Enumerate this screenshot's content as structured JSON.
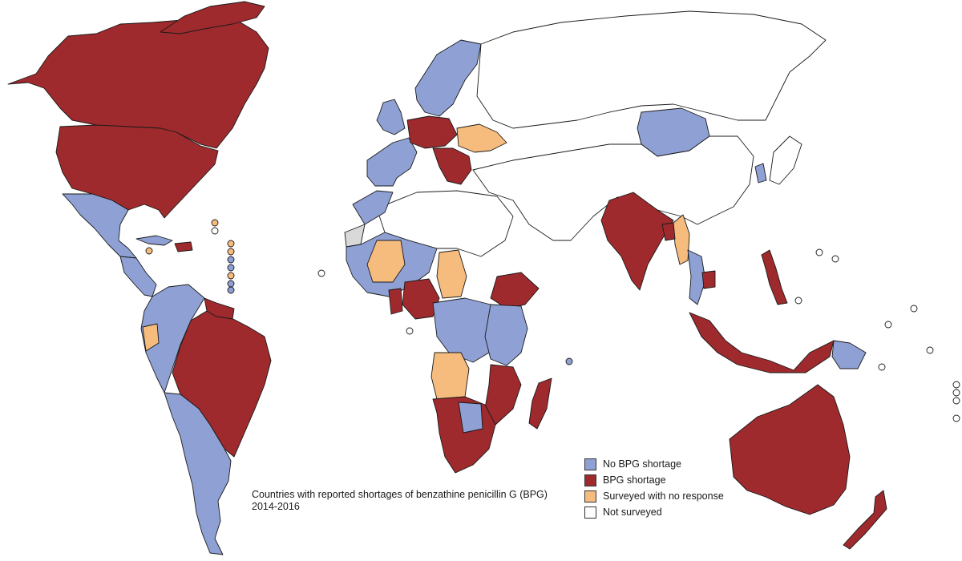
{
  "caption": {
    "line1": "Countries with reported shortages of benzathine penicillin G (BPG)",
    "line2": "2014-2016"
  },
  "legend": [
    {
      "key": "no_shortage",
      "label": "No BPG shortage",
      "color": "#8fa1d4"
    },
    {
      "key": "shortage",
      "label": "BPG shortage",
      "color": "#9e2a2d"
    },
    {
      "key": "no_response",
      "label": "Surveyed with no response",
      "color": "#f6bc7e"
    },
    {
      "key": "not_surveyed",
      "label": "Not surveyed",
      "color": "#ffffff"
    }
  ],
  "colors": {
    "outline": "#1a1a1a",
    "no_data_gray": "#d9d9d9"
  },
  "regions": [
    {
      "name": "canada-alaska",
      "status": "shortage"
    },
    {
      "name": "arctic-islands",
      "status": "shortage"
    },
    {
      "name": "usa",
      "status": "shortage"
    },
    {
      "name": "mexico",
      "status": "no_shortage"
    },
    {
      "name": "central-america",
      "status": "no_shortage"
    },
    {
      "name": "cuba",
      "status": "no_shortage"
    },
    {
      "name": "hispaniola",
      "status": "shortage"
    },
    {
      "name": "south-america-west",
      "status": "no_shortage"
    },
    {
      "name": "ecuador",
      "status": "no_response"
    },
    {
      "name": "brazil",
      "status": "shortage"
    },
    {
      "name": "guianas",
      "status": "shortage"
    },
    {
      "name": "argentina-chile",
      "status": "no_shortage"
    },
    {
      "name": "uk-ireland",
      "status": "no_shortage"
    },
    {
      "name": "scandinavia",
      "status": "no_shortage"
    },
    {
      "name": "france-iberia",
      "status": "no_shortage"
    },
    {
      "name": "germany-poland",
      "status": "shortage"
    },
    {
      "name": "ukraine",
      "status": "no_response"
    },
    {
      "name": "balkans",
      "status": "shortage"
    },
    {
      "name": "russia-north-asia",
      "status": "not_surveyed"
    },
    {
      "name": "mongolia",
      "status": "no_shortage"
    },
    {
      "name": "china-middle-east",
      "status": "not_surveyed"
    },
    {
      "name": "north-africa",
      "status": "not_surveyed"
    },
    {
      "name": "morocco",
      "status": "no_shortage"
    },
    {
      "name": "western-sahara",
      "status": "no_data_gray"
    },
    {
      "name": "west-africa",
      "status": "no_shortage"
    },
    {
      "name": "mali",
      "status": "no_response"
    },
    {
      "name": "chad",
      "status": "no_response"
    },
    {
      "name": "nigeria",
      "status": "shortage"
    },
    {
      "name": "ghana",
      "status": "shortage"
    },
    {
      "name": "ethiopia",
      "status": "shortage"
    },
    {
      "name": "central-africa",
      "status": "no_shortage"
    },
    {
      "name": "angola",
      "status": "no_response"
    },
    {
      "name": "east-africa",
      "status": "no_shortage"
    },
    {
      "name": "mozambique",
      "status": "shortage"
    },
    {
      "name": "namibia-south-africa",
      "status": "shortage"
    },
    {
      "name": "botswana",
      "status": "no_shortage"
    },
    {
      "name": "madagascar",
      "status": "shortage"
    },
    {
      "name": "india",
      "status": "shortage"
    },
    {
      "name": "myanmar",
      "status": "no_response"
    },
    {
      "name": "bangladesh",
      "status": "shortage"
    },
    {
      "name": "thailand",
      "status": "no_shortage"
    },
    {
      "name": "cambodia",
      "status": "shortage"
    },
    {
      "name": "philippines",
      "status": "shortage"
    },
    {
      "name": "indonesia",
      "status": "shortage"
    },
    {
      "name": "papua-new-guinea",
      "status": "no_shortage"
    },
    {
      "name": "japan",
      "status": "not_surveyed"
    },
    {
      "name": "korea",
      "status": "no_shortage"
    },
    {
      "name": "australia",
      "status": "shortage"
    },
    {
      "name": "new-zealand",
      "status": "shortage"
    }
  ]
}
